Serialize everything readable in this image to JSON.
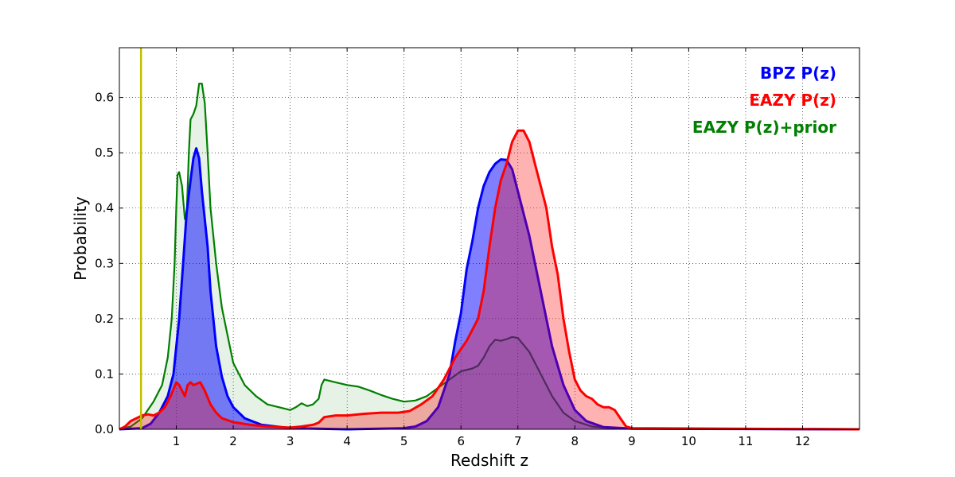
{
  "chart_data": {
    "type": "area",
    "title": "",
    "xlabel": "Redshift z",
    "ylabel": "Probability",
    "xlim": [
      0,
      13
    ],
    "ylim": [
      0,
      0.69
    ],
    "grid": true,
    "legend_position": "top-right",
    "xticks": [
      1,
      2,
      3,
      4,
      5,
      6,
      7,
      8,
      9,
      10,
      11,
      12
    ],
    "xtick_labels": [
      "1",
      "2",
      "3",
      "4",
      "5",
      "6",
      "7",
      "8",
      "9",
      "10",
      "11",
      "12"
    ],
    "yticks": [
      0.0,
      0.1,
      0.2,
      0.3,
      0.4,
      0.5,
      0.6
    ],
    "ytick_labels": [
      "0.0",
      "0.1",
      "0.2",
      "0.3",
      "0.4",
      "0.5",
      "0.6"
    ],
    "vline": {
      "x": 0.38,
      "color": "#bfbf00"
    },
    "series": [
      {
        "name": "EAZY P(z)+prior",
        "legend_label": "EAZY P(z)+prior",
        "color": "#007f00",
        "fill": "#007f00",
        "fill_opacity": 0.1,
        "points": [
          [
            0,
            0
          ],
          [
            0.2,
            0.005
          ],
          [
            0.4,
            0.02
          ],
          [
            0.6,
            0.05
          ],
          [
            0.75,
            0.08
          ],
          [
            0.85,
            0.13
          ],
          [
            0.92,
            0.2
          ],
          [
            0.97,
            0.3
          ],
          [
            1.0,
            0.4
          ],
          [
            1.02,
            0.46
          ],
          [
            1.05,
            0.465
          ],
          [
            1.1,
            0.44
          ],
          [
            1.15,
            0.38
          ],
          [
            1.18,
            0.38
          ],
          [
            1.22,
            0.5
          ],
          [
            1.25,
            0.56
          ],
          [
            1.3,
            0.57
          ],
          [
            1.35,
            0.585
          ],
          [
            1.4,
            0.625
          ],
          [
            1.45,
            0.625
          ],
          [
            1.5,
            0.59
          ],
          [
            1.55,
            0.5
          ],
          [
            1.6,
            0.4
          ],
          [
            1.7,
            0.3
          ],
          [
            1.8,
            0.22
          ],
          [
            1.9,
            0.17
          ],
          [
            2.0,
            0.12
          ],
          [
            2.2,
            0.08
          ],
          [
            2.4,
            0.06
          ],
          [
            2.6,
            0.045
          ],
          [
            2.8,
            0.04
          ],
          [
            3.0,
            0.035
          ],
          [
            3.1,
            0.04
          ],
          [
            3.2,
            0.047
          ],
          [
            3.3,
            0.042
          ],
          [
            3.4,
            0.045
          ],
          [
            3.5,
            0.055
          ],
          [
            3.55,
            0.08
          ],
          [
            3.6,
            0.09
          ],
          [
            3.8,
            0.085
          ],
          [
            4.0,
            0.08
          ],
          [
            4.2,
            0.077
          ],
          [
            4.4,
            0.07
          ],
          [
            4.6,
            0.062
          ],
          [
            4.8,
            0.055
          ],
          [
            5.0,
            0.05
          ],
          [
            5.2,
            0.052
          ],
          [
            5.4,
            0.06
          ],
          [
            5.6,
            0.075
          ],
          [
            5.8,
            0.09
          ],
          [
            6.0,
            0.105
          ],
          [
            6.2,
            0.11
          ],
          [
            6.3,
            0.115
          ],
          [
            6.4,
            0.13
          ],
          [
            6.5,
            0.15
          ],
          [
            6.6,
            0.162
          ],
          [
            6.7,
            0.16
          ],
          [
            6.8,
            0.163
          ],
          [
            6.9,
            0.167
          ],
          [
            7.0,
            0.165
          ],
          [
            7.2,
            0.14
          ],
          [
            7.4,
            0.1
          ],
          [
            7.6,
            0.06
          ],
          [
            7.8,
            0.03
          ],
          [
            8.0,
            0.015
          ],
          [
            8.3,
            0.005
          ],
          [
            8.6,
            0.002
          ],
          [
            9.0,
            0.001
          ],
          [
            13,
            0
          ]
        ]
      },
      {
        "name": "BPZ P(z)",
        "legend_label": "BPZ P(z)",
        "color": "#0000ff",
        "fill": "#0000ff",
        "fill_opacity": 0.5,
        "points": [
          [
            0,
            0
          ],
          [
            0.4,
            0.002
          ],
          [
            0.55,
            0.01
          ],
          [
            0.7,
            0.03
          ],
          [
            0.85,
            0.06
          ],
          [
            0.95,
            0.1
          ],
          [
            1.05,
            0.2
          ],
          [
            1.12,
            0.3
          ],
          [
            1.18,
            0.39
          ],
          [
            1.25,
            0.45
          ],
          [
            1.3,
            0.49
          ],
          [
            1.35,
            0.508
          ],
          [
            1.4,
            0.49
          ],
          [
            1.45,
            0.43
          ],
          [
            1.55,
            0.33
          ],
          [
            1.6,
            0.25
          ],
          [
            1.7,
            0.15
          ],
          [
            1.8,
            0.095
          ],
          [
            1.9,
            0.06
          ],
          [
            2.0,
            0.04
          ],
          [
            2.2,
            0.02
          ],
          [
            2.5,
            0.008
          ],
          [
            3.0,
            0.002
          ],
          [
            4.0,
            0
          ],
          [
            5.0,
            0.002
          ],
          [
            5.2,
            0.005
          ],
          [
            5.4,
            0.015
          ],
          [
            5.6,
            0.04
          ],
          [
            5.8,
            0.1
          ],
          [
            5.9,
            0.16
          ],
          [
            6.0,
            0.21
          ],
          [
            6.1,
            0.29
          ],
          [
            6.2,
            0.34
          ],
          [
            6.3,
            0.4
          ],
          [
            6.4,
            0.44
          ],
          [
            6.5,
            0.465
          ],
          [
            6.6,
            0.48
          ],
          [
            6.7,
            0.488
          ],
          [
            6.8,
            0.487
          ],
          [
            6.9,
            0.47
          ],
          [
            7.0,
            0.43
          ],
          [
            7.2,
            0.35
          ],
          [
            7.4,
            0.25
          ],
          [
            7.6,
            0.15
          ],
          [
            7.8,
            0.08
          ],
          [
            8.0,
            0.035
          ],
          [
            8.2,
            0.015
          ],
          [
            8.5,
            0.004
          ],
          [
            9.0,
            0.001
          ],
          [
            13,
            0
          ]
        ]
      },
      {
        "name": "EAZY P(z)",
        "legend_label": "EAZY P(z)",
        "color": "#ff0000",
        "fill": "#ff0000",
        "fill_opacity": 0.3,
        "points": [
          [
            0,
            0
          ],
          [
            0.1,
            0.005
          ],
          [
            0.2,
            0.015
          ],
          [
            0.3,
            0.02
          ],
          [
            0.4,
            0.025
          ],
          [
            0.5,
            0.027
          ],
          [
            0.6,
            0.025
          ],
          [
            0.7,
            0.03
          ],
          [
            0.8,
            0.04
          ],
          [
            0.9,
            0.06
          ],
          [
            1.0,
            0.085
          ],
          [
            1.05,
            0.08
          ],
          [
            1.1,
            0.07
          ],
          [
            1.15,
            0.06
          ],
          [
            1.2,
            0.08
          ],
          [
            1.25,
            0.085
          ],
          [
            1.3,
            0.08
          ],
          [
            1.35,
            0.082
          ],
          [
            1.42,
            0.085
          ],
          [
            1.5,
            0.07
          ],
          [
            1.6,
            0.045
          ],
          [
            1.7,
            0.03
          ],
          [
            1.8,
            0.02
          ],
          [
            2.0,
            0.013
          ],
          [
            2.3,
            0.008
          ],
          [
            2.6,
            0.005
          ],
          [
            3.0,
            0.003
          ],
          [
            3.2,
            0.005
          ],
          [
            3.4,
            0.008
          ],
          [
            3.5,
            0.012
          ],
          [
            3.6,
            0.022
          ],
          [
            3.8,
            0.025
          ],
          [
            4.0,
            0.025
          ],
          [
            4.3,
            0.028
          ],
          [
            4.6,
            0.03
          ],
          [
            4.9,
            0.03
          ],
          [
            5.1,
            0.033
          ],
          [
            5.3,
            0.045
          ],
          [
            5.5,
            0.06
          ],
          [
            5.7,
            0.09
          ],
          [
            5.9,
            0.13
          ],
          [
            6.0,
            0.145
          ],
          [
            6.1,
            0.16
          ],
          [
            6.3,
            0.2
          ],
          [
            6.4,
            0.25
          ],
          [
            6.5,
            0.33
          ],
          [
            6.6,
            0.4
          ],
          [
            6.7,
            0.45
          ],
          [
            6.8,
            0.48
          ],
          [
            6.9,
            0.52
          ],
          [
            7.0,
            0.54
          ],
          [
            7.1,
            0.54
          ],
          [
            7.2,
            0.52
          ],
          [
            7.3,
            0.48
          ],
          [
            7.4,
            0.44
          ],
          [
            7.5,
            0.4
          ],
          [
            7.6,
            0.33
          ],
          [
            7.7,
            0.28
          ],
          [
            7.8,
            0.2
          ],
          [
            7.9,
            0.14
          ],
          [
            8.0,
            0.09
          ],
          [
            8.1,
            0.07
          ],
          [
            8.2,
            0.06
          ],
          [
            8.3,
            0.055
          ],
          [
            8.4,
            0.045
          ],
          [
            8.5,
            0.04
          ],
          [
            8.6,
            0.04
          ],
          [
            8.7,
            0.035
          ],
          [
            8.8,
            0.02
          ],
          [
            8.9,
            0.005
          ],
          [
            9.0,
            0.002
          ],
          [
            13,
            0
          ]
        ]
      }
    ]
  }
}
